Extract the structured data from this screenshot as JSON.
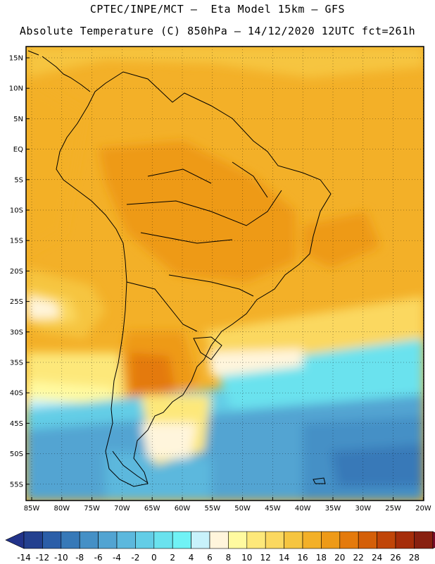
{
  "header": {
    "line1": "CPTEC/INPE/MCT –  Eta Model 15km – GFS",
    "line2": "Absolute Temperature (C) 850hPa – 14/12/2020 12UTC fct=261h"
  },
  "map": {
    "lat_labels": [
      "15N",
      "10N",
      "5N",
      "EQ",
      "5S",
      "10S",
      "15S",
      "20S",
      "25S",
      "30S",
      "35S",
      "40S",
      "45S",
      "50S",
      "55S"
    ],
    "lon_labels": [
      "85W",
      "80W",
      "75W",
      "70W",
      "65W",
      "60W",
      "55W",
      "50W",
      "45W",
      "40W",
      "35W",
      "30W",
      "25W",
      "20W"
    ]
  },
  "colorbar": {
    "values": [
      "-14",
      "-12",
      "-10",
      "-8",
      "-6",
      "-4",
      "-2",
      "0",
      "2",
      "4",
      "6",
      "8",
      "10",
      "12",
      "14",
      "16",
      "18",
      "20",
      "22",
      "24",
      "26",
      "28"
    ],
    "colors": [
      "#23408f",
      "#2b5ea8",
      "#3779b8",
      "#4590c6",
      "#52a4d2",
      "#5cb8dd",
      "#63cde6",
      "#6ae2ee",
      "#70f2f5",
      "#c8f2fb",
      "#fff5dc",
      "#fffaa0",
      "#fde87a",
      "#fbd860",
      "#f6c540",
      "#f3b028",
      "#ee9a18",
      "#e47a0c",
      "#d45f08",
      "#c04508",
      "#a52d0a",
      "#882010"
    ],
    "under_color": "#22338a",
    "over_color": "#7a0a28"
  }
}
